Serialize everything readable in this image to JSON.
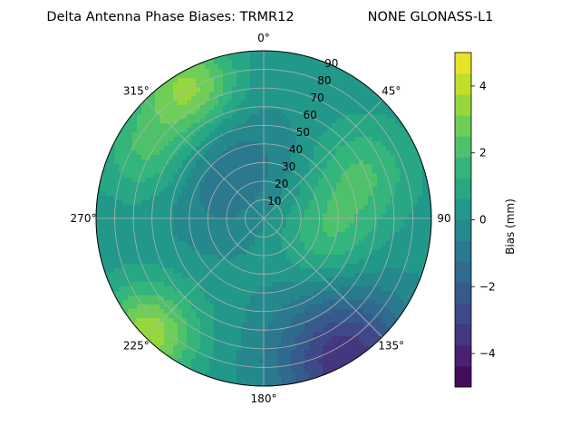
{
  "chart_data": {
    "type": "polar-contour",
    "title": "Delta Antenna Phase Biases: TRMR12",
    "subtitle": "NONE GLONASS-L1",
    "azimuth_ticks": [
      "0°",
      "45°",
      "90",
      "135°",
      "180°",
      "225°",
      "270°",
      "315°"
    ],
    "radial_ticks": [
      "10",
      "20",
      "30",
      "40",
      "50",
      "60",
      "70",
      "80",
      "90"
    ],
    "radial_range": [
      0,
      90
    ],
    "colorbar": {
      "label": "Bias (mm)",
      "ticks": [
        "−4",
        "−2",
        "0",
        "2",
        "4"
      ],
      "range": [
        -5,
        5
      ],
      "levels": [
        -5,
        -4.375,
        -3.75,
        -3.125,
        -2.5,
        -1.875,
        -1.25,
        -0.625,
        0,
        0.625,
        1.25,
        1.875,
        2.5,
        3.125,
        3.75,
        4.375,
        5
      ]
    },
    "grid": true,
    "colormap": "viridis",
    "field_features": [
      {
        "kind": "high",
        "az_deg": 330,
        "el_deg": 80,
        "value": 3.5
      },
      {
        "kind": "high",
        "az_deg": 225,
        "el_deg": 88,
        "value": 3.5
      },
      {
        "kind": "high",
        "az_deg": 300,
        "el_deg": 70,
        "value": 2.2
      },
      {
        "kind": "high",
        "az_deg": 65,
        "el_deg": 58,
        "value": 1.9
      },
      {
        "kind": "high",
        "az_deg": 105,
        "el_deg": 35,
        "value": 1.9
      },
      {
        "kind": "low",
        "az_deg": 320,
        "el_deg": 35,
        "value": -1.3
      },
      {
        "kind": "low",
        "az_deg": 150,
        "el_deg": 88,
        "value": -3.6
      }
    ]
  }
}
